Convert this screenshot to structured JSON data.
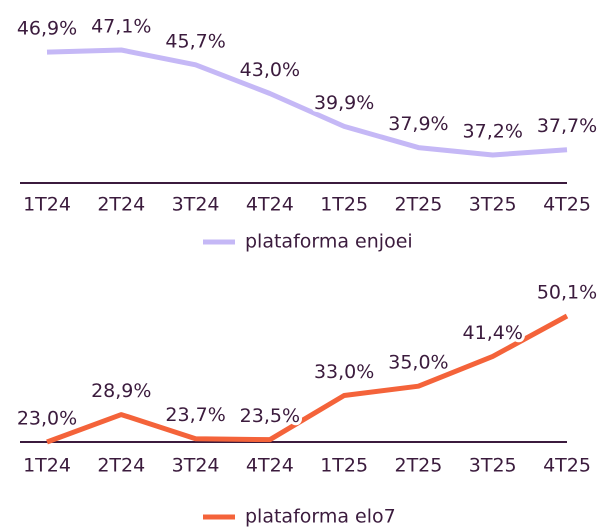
{
  "chart_data": [
    {
      "type": "line",
      "categories": [
        "1T24",
        "2T24",
        "3T24",
        "4T24",
        "1T25",
        "2T25",
        "3T25",
        "4T25"
      ],
      "series": [
        {
          "name": "plataforma enjoei",
          "color": "#c5b8f6",
          "values": [
            46.9,
            47.1,
            45.7,
            43.0,
            39.9,
            37.9,
            37.2,
            37.7
          ],
          "value_labels": [
            "46,9%",
            "47,1%",
            "45,7%",
            "43,0%",
            "39,9%",
            "37,9%",
            "37,2%",
            "37,7%"
          ]
        }
      ]
    },
    {
      "type": "line",
      "categories": [
        "1T24",
        "2T24",
        "3T24",
        "4T24",
        "1T25",
        "2T25",
        "3T25",
        "4T25"
      ],
      "series": [
        {
          "name": "plataforma elo7",
          "color": "#f4633a",
          "values": [
            23.0,
            28.9,
            23.7,
            23.5,
            33.0,
            35.0,
            41.4,
            50.1
          ],
          "value_labels": [
            "23,0%",
            "28,9%",
            "23,7%",
            "23,5%",
            "33,0%",
            "35,0%",
            "41,4%",
            "50,1%"
          ]
        }
      ]
    }
  ]
}
